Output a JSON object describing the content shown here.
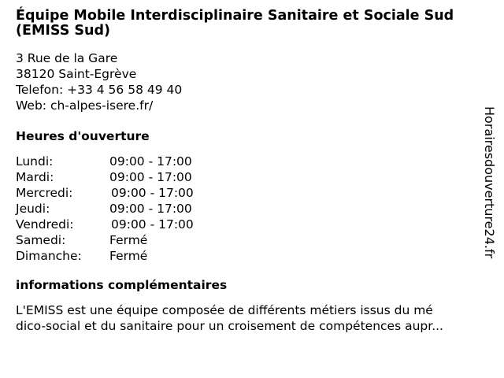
{
  "title": "Équipe Mobile Interdisciplinaire Sanitaire et Sociale Sud (EMISS Sud)",
  "address": {
    "street": "3 Rue de la Gare",
    "city": "38120 Saint-Egrève",
    "phone": "Telefon: +33 4 56 58 49 40",
    "web": "Web: ch-alpes-isere.fr/"
  },
  "hours_heading": "Heures d'ouverture",
  "hours": [
    {
      "day": "Lundi:",
      "time": "09:00 - 17:00"
    },
    {
      "day": "Mardi:",
      "time": "09:00 - 17:00"
    },
    {
      "day": "Mercredi:",
      "time": "09:00 - 17:00"
    },
    {
      "day": "Jeudi:",
      "time": "09:00 - 17:00"
    },
    {
      "day": "Vendredi:",
      "time": "09:00 - 17:00"
    },
    {
      "day": "Samedi:",
      "time": "Fermé"
    },
    {
      "day": "Dimanche:",
      "time": "Fermé"
    }
  ],
  "info_heading": "informations complémentaires",
  "info_lines": [
    "L'EMISS est une équipe composée de différents métiers issus du mé",
    "dico-social et du sanitaire pour un croisement de compétences aupr..."
  ],
  "side_brand": "Horairesdouverture24.fr"
}
